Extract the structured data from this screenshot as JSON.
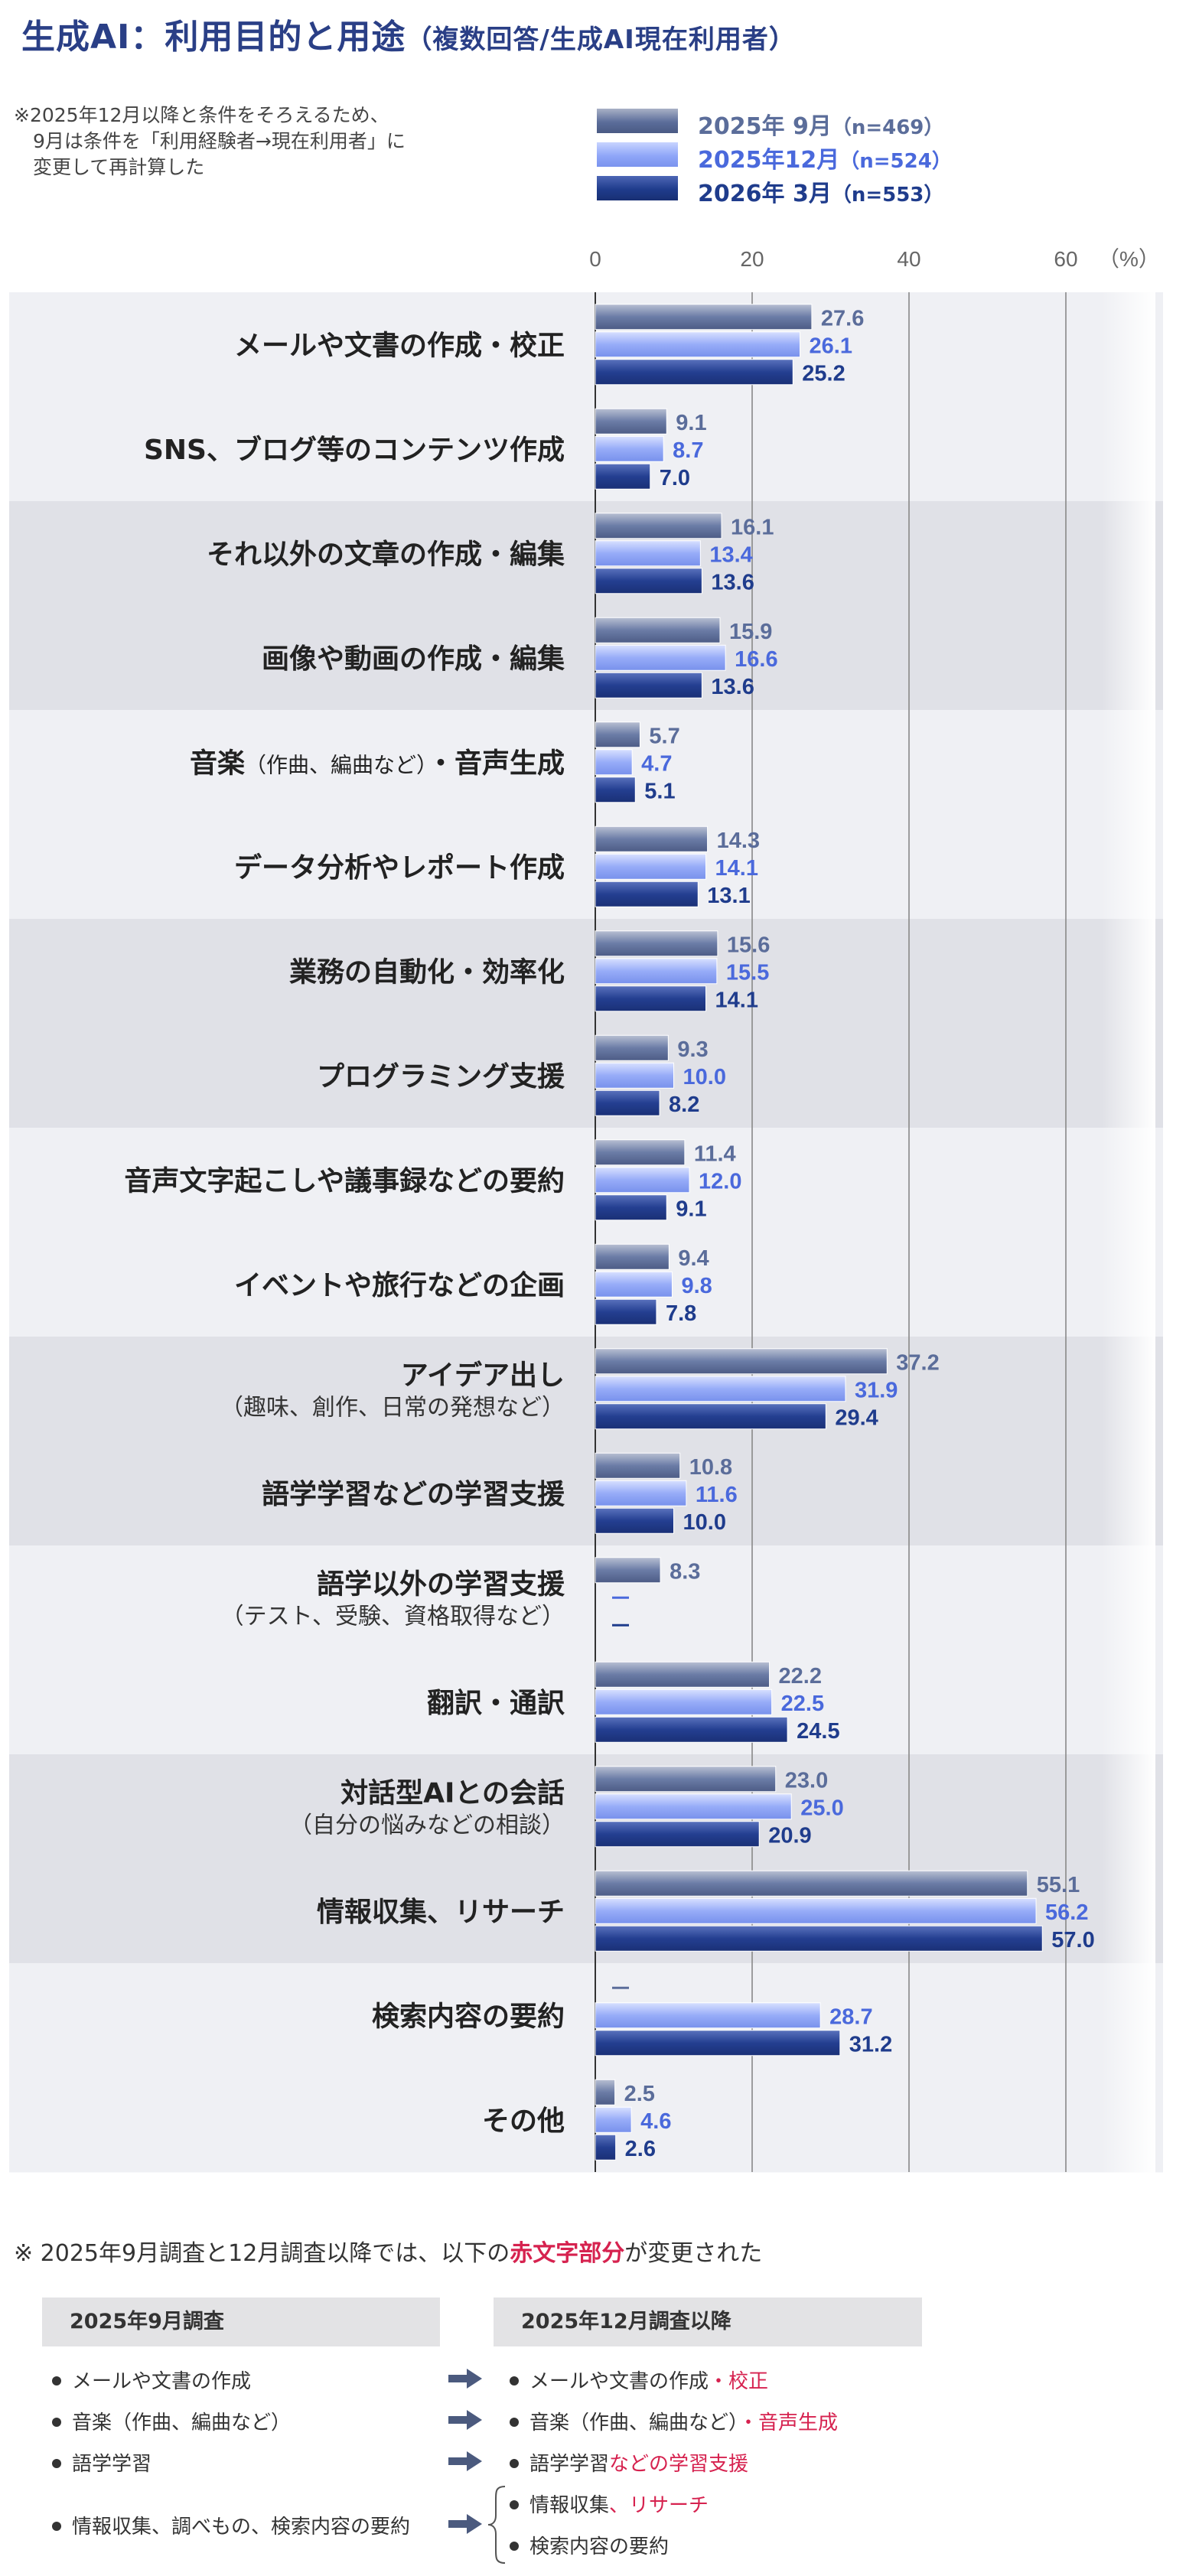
{
  "title": "生成AI：利用目的と用途",
  "subtitle": "（複数回答/生成AI現在利用者）",
  "note_lines": [
    "※2025年12月以降と条件をそろえるため、",
    "　9月は条件を「利用経験者→現在利用者」に",
    "　変更して再計算した"
  ],
  "legend": [
    {
      "label": "2025年 9月",
      "n": "（n=469）",
      "color": "#5b6d9a"
    },
    {
      "label": "2025年12月",
      "n": "（n=524）",
      "color": "#4a69dc"
    },
    {
      "label": "2026年 3月",
      "n": "（n=553）",
      "color": "#1f3c8c"
    }
  ],
  "chart_data": {
    "type": "bar",
    "orientation": "horizontal",
    "unit": "（%）",
    "xlim": [
      0,
      70
    ],
    "xticks": [
      0,
      20,
      40,
      60
    ],
    "grid": true,
    "legend_position": "top",
    "categories": [
      {
        "label": "メールや文書の作成・校正",
        "sub": ""
      },
      {
        "label": "SNS、ブログ等のコンテンツ作成",
        "sub": ""
      },
      {
        "label": "それ以外の文章の作成・編集",
        "sub": ""
      },
      {
        "label": "画像や動画の作成・編集",
        "sub": ""
      },
      {
        "label": "音楽",
        "paren": "（作曲、編曲など）",
        "tail": "・音声生成",
        "sub": ""
      },
      {
        "label": "データ分析やレポート作成",
        "sub": ""
      },
      {
        "label": "業務の自動化・効率化",
        "sub": ""
      },
      {
        "label": "プログラミング支援",
        "sub": ""
      },
      {
        "label": "音声文字起こしや議事録などの要約",
        "sub": ""
      },
      {
        "label": "イベントや旅行などの企画",
        "sub": ""
      },
      {
        "label": "アイデア出し",
        "sub": "（趣味、創作、日常の発想など）"
      },
      {
        "label": "語学学習などの学習支援",
        "sub": ""
      },
      {
        "label": "語学以外の学習支援",
        "sub": "（テスト、受験、資格取得など）"
      },
      {
        "label": "翻訳・通訳",
        "sub": ""
      },
      {
        "label": "対話型AIとの会話",
        "sub": "（自分の悩みなどの相談）"
      },
      {
        "label": "情報収集、リサーチ",
        "sub": ""
      },
      {
        "label": "検索内容の要約",
        "sub": ""
      },
      {
        "label": "その他",
        "sub": ""
      }
    ],
    "series": [
      {
        "name": "2025年 9月",
        "values": [
          27.6,
          9.1,
          16.1,
          15.9,
          5.7,
          14.3,
          15.6,
          9.3,
          11.4,
          9.4,
          37.2,
          10.8,
          8.3,
          22.2,
          23.0,
          55.1,
          null,
          2.5
        ]
      },
      {
        "name": "2025年12月",
        "values": [
          26.1,
          8.7,
          13.4,
          16.6,
          4.7,
          14.1,
          15.5,
          10.0,
          12.0,
          9.8,
          31.9,
          11.6,
          null,
          22.5,
          25.0,
          56.2,
          28.7,
          4.6
        ]
      },
      {
        "name": "2026年 3月",
        "values": [
          25.2,
          7.0,
          13.6,
          13.6,
          5.1,
          13.1,
          14.1,
          8.2,
          9.1,
          7.8,
          29.4,
          10.0,
          null,
          24.5,
          20.9,
          57.0,
          31.2,
          2.6
        ]
      }
    ],
    "missing_mark": "—"
  },
  "footnote": {
    "prefix": "※ 2025年9月調査と12月調査以降では、以下の",
    "highlight": "赤文字部分",
    "suffix": "が変更された"
  },
  "comparison": {
    "left_header": "2025年9月調査",
    "right_header": "2025年12月調査以降",
    "rows": [
      {
        "left": "メールや文書の作成",
        "right": "メールや文書の作成",
        "right_hl": "・校正"
      },
      {
        "left": "音楽（作曲、編曲など）",
        "right": "音楽（作曲、編曲など）",
        "right_hl": "・音声生成"
      },
      {
        "left": "語学学習",
        "right": "語学学習",
        "right_hl": "などの学習支援"
      }
    ],
    "split_row": {
      "left": "情報収集、調べもの、検索内容の要約",
      "right1": "情報収集",
      "right1_hl": "、リサーチ",
      "right2": "検索内容の要約"
    }
  }
}
